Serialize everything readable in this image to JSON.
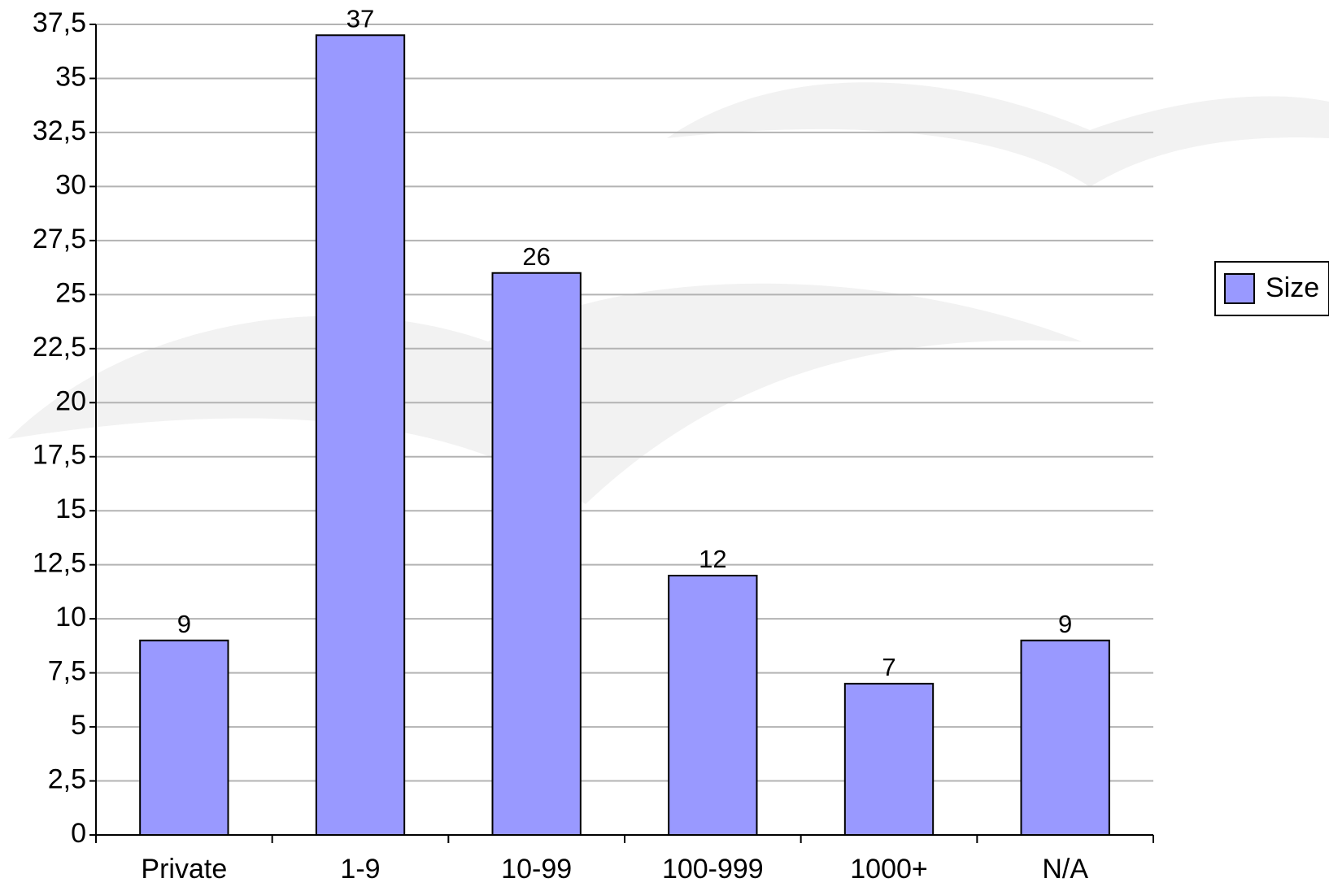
{
  "chart_data": {
    "type": "bar",
    "categories": [
      "Private",
      "1-9",
      "10-99",
      "100-999",
      "1000+",
      "N/A"
    ],
    "series": [
      {
        "name": "Size",
        "color": "#9999ff",
        "values": [
          9,
          37,
          26,
          12,
          7,
          9
        ]
      }
    ],
    "ylim": [
      0,
      37.5
    ],
    "yticks": [
      0,
      {
        "value": 2.5,
        "label": "2,5"
      },
      5,
      {
        "value": 7.5,
        "label": "7,5"
      },
      10,
      {
        "value": 12.5,
        "label": "12,5"
      },
      15,
      {
        "value": 17.5,
        "label": "17,5"
      },
      20,
      {
        "value": 22.5,
        "label": "22,5"
      },
      25,
      {
        "value": 27.5,
        "label": "27,5"
      },
      30,
      {
        "value": 32.5,
        "label": "32,5"
      },
      35,
      {
        "value": 37.5,
        "label": "37,5"
      }
    ],
    "grid": true,
    "legend": "right"
  }
}
